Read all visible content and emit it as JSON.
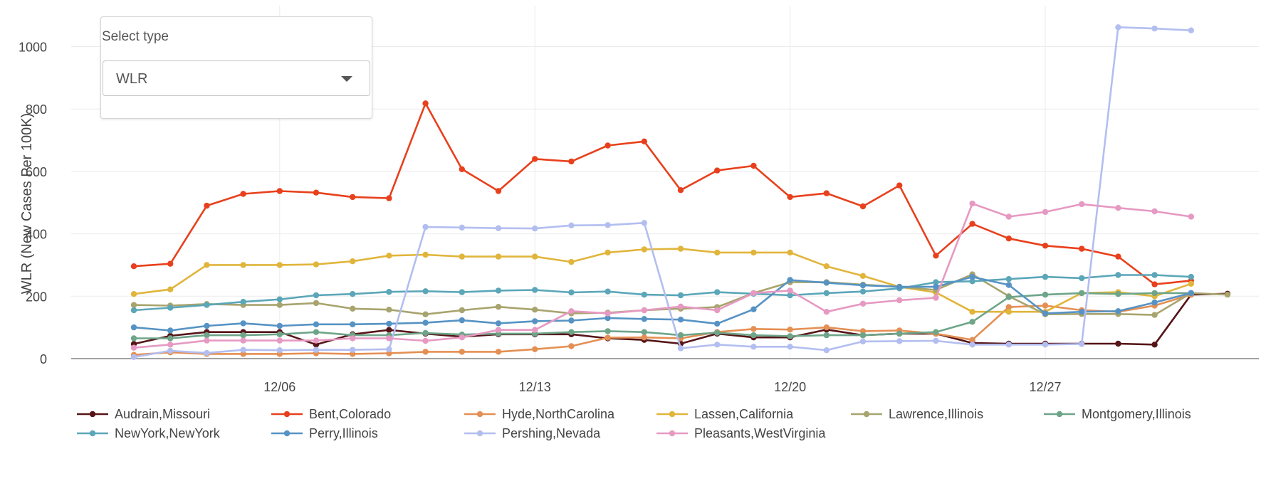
{
  "controls": {
    "select_label": "Select type",
    "selected_value": "WLR"
  },
  "chart_data": {
    "type": "line",
    "title": "",
    "xlabel": "",
    "ylabel": "WLR (New Cases Per 100K)",
    "x_start": "12/02",
    "x_tick_labels": [
      "12/06",
      "12/13",
      "12/20",
      "12/27"
    ],
    "x_tick_indices": [
      4,
      11,
      18,
      25
    ],
    "y_ticks": [
      0,
      200,
      400,
      600,
      800,
      1000
    ],
    "ylim": [
      0,
      1000
    ],
    "grid": true,
    "legend": "bottom",
    "series": [
      {
        "name": "Audrain,Missouri",
        "color": "#561518",
        "values": [
          47,
          73,
          85,
          85,
          85,
          45,
          78,
          92,
          80,
          70,
          78,
          78,
          78,
          65,
          60,
          48,
          80,
          68,
          68,
          93,
          75,
          80,
          80,
          50,
          48,
          48,
          48,
          48,
          45,
          205,
          208
        ]
      },
      {
        "name": "Bent,Colorado",
        "color": "#e8401c",
        "values": [
          296,
          304,
          490,
          528,
          537,
          532,
          518,
          514,
          818,
          607,
          537,
          640,
          632,
          683,
          696,
          540,
          603,
          618,
          518,
          530,
          488,
          555,
          330,
          432,
          385,
          362,
          352,
          327,
          238,
          250
        ]
      },
      {
        "name": "Hyde,NorthCarolina",
        "color": "#e48f53",
        "values": [
          12,
          20,
          15,
          15,
          15,
          17,
          15,
          17,
          22,
          22,
          22,
          30,
          40,
          67,
          68,
          65,
          85,
          95,
          93,
          100,
          88,
          90,
          80,
          60,
          165,
          170,
          155,
          150,
          170,
          205
        ]
      },
      {
        "name": "Lassen,California",
        "color": "#e1b53b",
        "values": [
          207,
          222,
          300,
          300,
          300,
          302,
          312,
          330,
          333,
          327,
          327,
          327,
          310,
          340,
          350,
          352,
          340,
          340,
          340,
          296,
          265,
          230,
          212,
          150,
          150,
          150,
          210,
          213,
          200,
          240
        ]
      },
      {
        "name": "Lawrence,Illinois",
        "color": "#a8a46e",
        "values": [
          172,
          170,
          175,
          172,
          172,
          178,
          160,
          157,
          142,
          155,
          166,
          157,
          145,
          147,
          155,
          160,
          165,
          210,
          245,
          245,
          237,
          230,
          220,
          270,
          200,
          142,
          143,
          143,
          140,
          210,
          205
        ]
      },
      {
        "name": "Montgomery,Illinois",
        "color": "#6ea589",
        "values": [
          65,
          65,
          75,
          75,
          78,
          85,
          75,
          75,
          82,
          77,
          80,
          80,
          85,
          88,
          85,
          75,
          83,
          75,
          72,
          75,
          75,
          80,
          85,
          118,
          197,
          205,
          210,
          207,
          210,
          210
        ]
      },
      {
        "name": "NewYork,NewYork",
        "color": "#5ba6b8",
        "values": [
          155,
          163,
          172,
          182,
          190,
          203,
          207,
          214,
          216,
          213,
          218,
          220,
          212,
          215,
          205,
          203,
          213,
          208,
          203,
          210,
          215,
          225,
          245,
          248,
          255,
          262,
          258,
          268,
          268,
          262
        ]
      },
      {
        "name": "Perry,Illinois",
        "color": "#5693c4",
        "values": [
          100,
          90,
          105,
          113,
          105,
          110,
          110,
          112,
          115,
          123,
          113,
          120,
          122,
          130,
          127,
          125,
          112,
          158,
          252,
          243,
          235,
          230,
          230,
          262,
          236,
          145,
          150,
          152,
          180,
          210
        ]
      },
      {
        "name": "Pershing,Nevada",
        "color": "#b3bef0",
        "values": [
          5,
          25,
          18,
          28,
          27,
          28,
          28,
          30,
          422,
          420,
          418,
          417,
          427,
          428,
          435,
          33,
          45,
          38,
          38,
          27,
          55,
          56,
          57,
          45,
          45,
          45,
          47,
          1062,
          1058,
          1052
        ]
      },
      {
        "name": "Pleasants,WestVirginia",
        "color": "#e699c2",
        "values": [
          35,
          45,
          58,
          58,
          58,
          58,
          65,
          65,
          57,
          68,
          92,
          92,
          152,
          145,
          155,
          167,
          155,
          210,
          218,
          150,
          176,
          187,
          195,
          497,
          455,
          470,
          495,
          483,
          472,
          455
        ]
      }
    ]
  }
}
